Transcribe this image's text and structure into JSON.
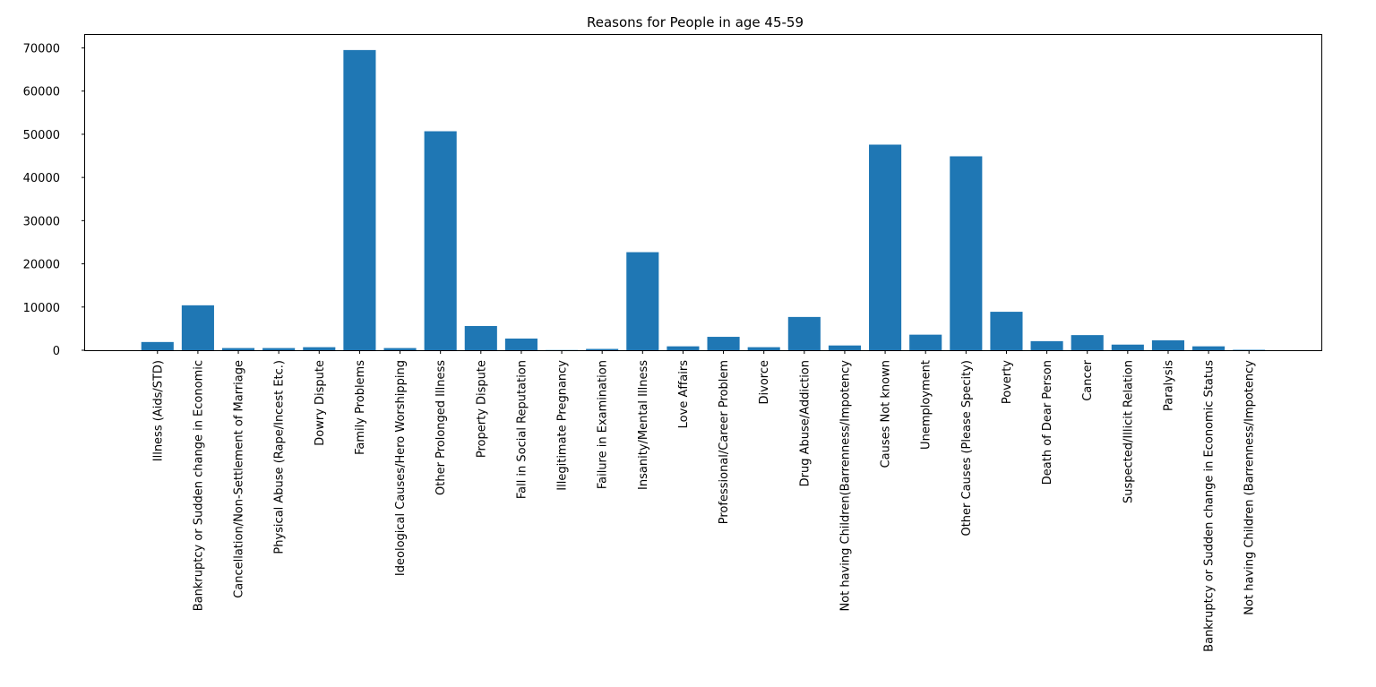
{
  "chart_data": {
    "type": "bar",
    "title": "Reasons for People in age 45-59",
    "xlabel": "",
    "ylabel": "",
    "ylim": [
      0,
      73000
    ],
    "yticks": [
      0,
      10000,
      20000,
      30000,
      40000,
      50000,
      60000,
      70000
    ],
    "grid": false,
    "bar_color": "#1f77b4",
    "categories": [
      "Illness (Aids/STD)",
      "Bankruptcy or Sudden change in Economic",
      "Cancellation/Non-Settlement of Marriage",
      "Physical Abuse (Rape/Incest Etc.)",
      "Dowry Dispute",
      "Family Problems",
      "Ideological Causes/Hero Worshipping",
      "Other Prolonged Illness",
      "Property Dispute",
      "Fall in Social Reputation",
      "Illegitimate Pregnancy",
      "Failure in Examination",
      "Insanity/Mental Illness",
      "Love Affairs",
      "Professional/Career Problem",
      "Divorce",
      "Drug Abuse/Addiction",
      "Not having Children(Barrenness/Impotency",
      "Causes Not known",
      "Unemployment",
      "Other Causes (Please Specity)",
      "Poverty",
      "Death of Dear Person",
      "Cancer",
      "Suspected/Illicit Relation",
      "Paralysis",
      "Bankruptcy or Sudden change in Economic Status",
      "Not having Children (Barrenness/Impotency"
    ],
    "values": [
      1900,
      10400,
      500,
      500,
      700,
      69500,
      500,
      50700,
      5600,
      2700,
      50,
      300,
      22700,
      900,
      3100,
      700,
      7700,
      1100,
      47600,
      3600,
      44900,
      8900,
      2100,
      3500,
      1300,
      2300,
      900,
      100
    ]
  }
}
